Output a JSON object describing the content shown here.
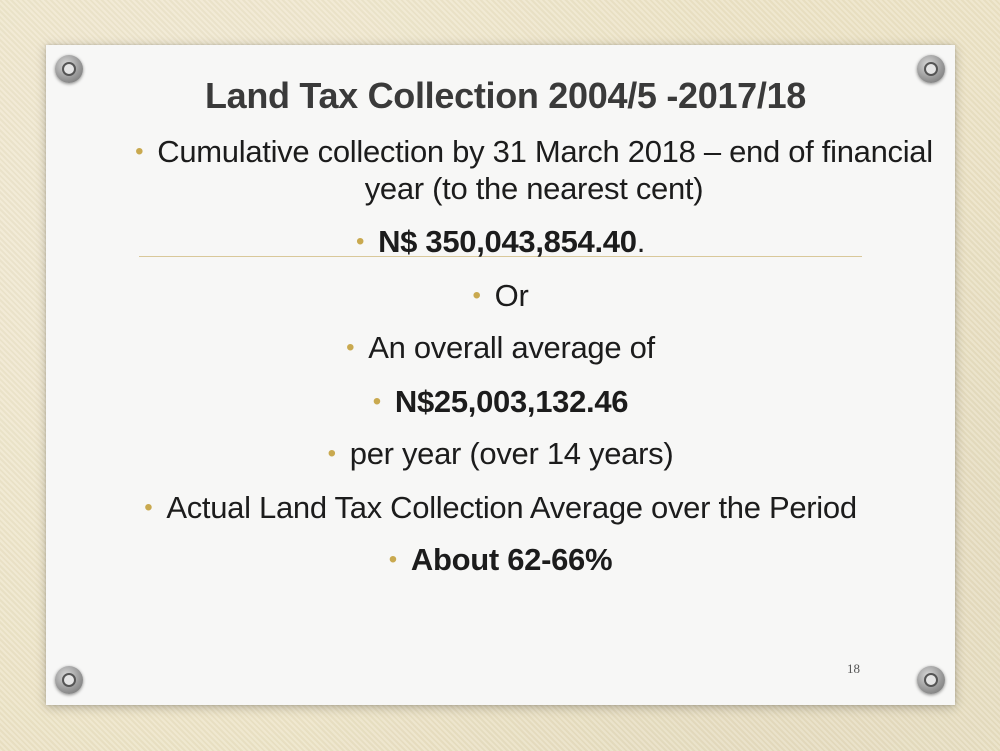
{
  "slide": {
    "title": "Land Tax Collection 2004/5 -2017/18",
    "bullets": [
      {
        "text": "Cumulative collection by 31 March 2018 – end of financial",
        "text2": "year (to the nearest cent)"
      },
      {
        "text": "N$ 350,043,854.40",
        "suffix": "."
      },
      {
        "text": "Or"
      },
      {
        "text": "An overall average of"
      },
      {
        "text": "N$25,003,132.46"
      },
      {
        "text": "per year (over 14 years)"
      },
      {
        "text": "Actual Land Tax Collection Average over the Period"
      },
      {
        "text": "About 62-66%"
      }
    ],
    "page_number": "18",
    "bullet_symbol": "•",
    "accent_color": "#c9a94f"
  }
}
